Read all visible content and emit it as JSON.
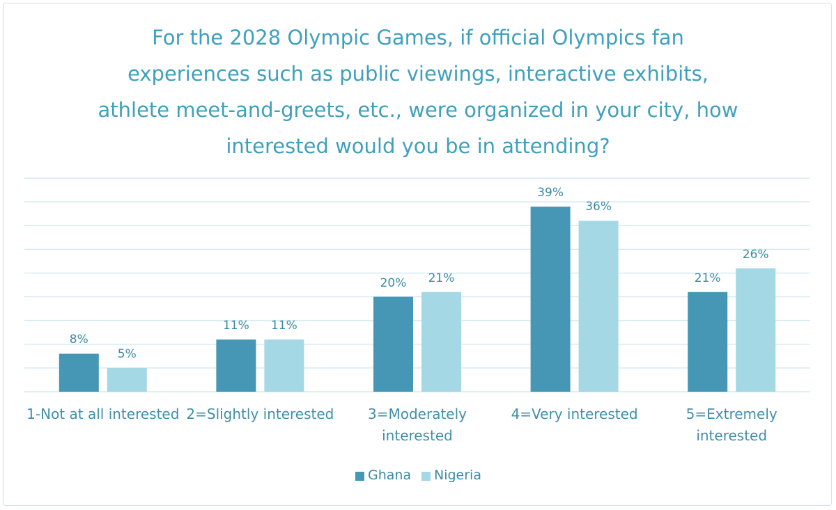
{
  "chart_data": {
    "type": "bar",
    "title": "For the 2028 Olympic Games, if official Olympics fan experiences such as public viewings, interactive exhibits, athlete meet-and-greets, etc., were organized in your city, how interested would you be in attending?",
    "categories": [
      "1-Not at all interested",
      "2=Slightly interested",
      "3=Moderately interested",
      "4=Very interested",
      "5=Extremely interested"
    ],
    "series": [
      {
        "name": "Ghana",
        "color": "#4597b5",
        "values": [
          8,
          11,
          20,
          39,
          21
        ],
        "value_labels": [
          "8%",
          "11%",
          "20%",
          "39%",
          "21%"
        ]
      },
      {
        "name": "Nigeria",
        "color": "#a4d8e5",
        "values": [
          5,
          11,
          21,
          36,
          26
        ],
        "value_labels": [
          "5%",
          "11%",
          "21%",
          "36%",
          "26%"
        ]
      }
    ],
    "ylim": [
      0,
      45
    ],
    "yticks": [
      0,
      5,
      10,
      15,
      20,
      25,
      30,
      35,
      40,
      45
    ],
    "grid": true,
    "legend": "bottom"
  }
}
